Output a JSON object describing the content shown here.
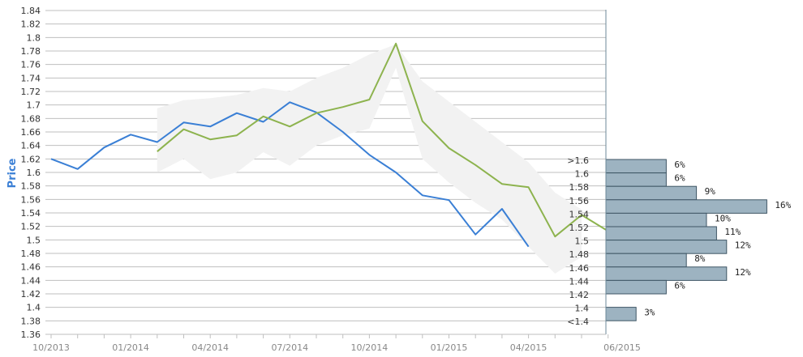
{
  "chart_data": {
    "type": "line",
    "xlabel": "",
    "ylabel": "Price",
    "ylim": [
      1.36,
      1.84
    ],
    "y_ticks": [
      "1.84",
      "1.82",
      "1.8",
      "1.78",
      "1.76",
      "1.74",
      "1.72",
      "1.7",
      "1.68",
      "1.66",
      "1.64",
      "1.62",
      "1.6",
      "1.58",
      "1.56",
      "1.54",
      "1.52",
      "1.5",
      "1.48",
      "1.46",
      "1.44",
      "1.42",
      "1.4",
      "1.38",
      "1.36"
    ],
    "x_ticks": [
      "10/2013",
      "01/2014",
      "04/2014",
      "07/2014",
      "10/2014",
      "01/2015",
      "04/2015",
      "06/2015"
    ],
    "grid": true,
    "series": [
      {
        "color": "#3a7fd5",
        "x": [
          "2013-10",
          "2013-11",
          "2013-12",
          "2014-01",
          "2014-02",
          "2014-03",
          "2014-04",
          "2014-05",
          "2014-06",
          "2014-07",
          "2014-08",
          "2014-09",
          "2014-10",
          "2014-11",
          "2014-12",
          "2015-01",
          "2015-02",
          "2015-03",
          "2015-04"
        ],
        "values": [
          1.62,
          1.605,
          1.637,
          1.656,
          1.645,
          1.674,
          1.668,
          1.688,
          1.675,
          1.704,
          1.689,
          1.66,
          1.626,
          1.6,
          1.566,
          1.559,
          1.508,
          1.546,
          1.49
        ]
      },
      {
        "color": "#8db34e",
        "x": [
          "2014-02",
          "2014-03",
          "2014-04",
          "2014-05",
          "2014-06",
          "2014-07",
          "2014-08",
          "2014-09",
          "2014-10",
          "2014-11",
          "2014-12",
          "2015-01",
          "2015-02",
          "2015-03",
          "2015-04",
          "2015-05",
          "2015-06",
          "2015-07"
        ],
        "values": [
          1.631,
          1.664,
          1.649,
          1.655,
          1.683,
          1.668,
          1.688,
          1.697,
          1.708,
          1.791,
          1.676,
          1.636,
          1.611,
          1.583,
          1.578,
          1.505,
          1.537,
          1.513
        ]
      }
    ],
    "band": {
      "color": "#f2f2f2",
      "x": [
        "2014-02",
        "2014-03",
        "2014-04",
        "2014-05",
        "2014-06",
        "2014-07",
        "2014-08",
        "2014-09",
        "2014-10",
        "2014-11",
        "2014-12",
        "2015-01",
        "2015-02",
        "2015-03",
        "2015-04",
        "2015-05",
        "2015-06"
      ],
      "upper": [
        1.695,
        1.707,
        1.71,
        1.715,
        1.725,
        1.72,
        1.74,
        1.755,
        1.775,
        1.79,
        1.735,
        1.705,
        1.675,
        1.645,
        1.615,
        1.57,
        1.545
      ],
      "lower": [
        1.6,
        1.62,
        1.59,
        1.6,
        1.63,
        1.61,
        1.64,
        1.655,
        1.665,
        1.755,
        1.62,
        1.585,
        1.555,
        1.53,
        1.49,
        1.45,
        1.475
      ]
    },
    "histogram": {
      "color": "#9db3c1",
      "bins": [
        {
          "label": ">1.6",
          "percent_text": "6%",
          "value": 6
        },
        {
          "label": "1.6",
          "percent_text": "6%",
          "value": 6
        },
        {
          "label": "1.58",
          "percent_text": "9%",
          "value": 9
        },
        {
          "label": "1.56",
          "percent_text": "16%",
          "value": 16
        },
        {
          "label": "1.54",
          "percent_text": "10%",
          "value": 10
        },
        {
          "label": "1.52",
          "percent_text": "11%",
          "value": 11
        },
        {
          "label": "1.5",
          "percent_text": "12%",
          "value": 12
        },
        {
          "label": "1.48",
          "percent_text": "8%",
          "value": 8
        },
        {
          "label": "1.46",
          "percent_text": "12%",
          "value": 12
        },
        {
          "label": "1.44",
          "percent_text": "6%",
          "value": 6
        },
        {
          "label": "1.42",
          "percent_text": "",
          "value": 0
        },
        {
          "label": "1.4",
          "percent_text": "3%",
          "value": 3
        },
        {
          "label": "<1.4",
          "percent_text": "",
          "value": 0
        }
      ]
    }
  }
}
